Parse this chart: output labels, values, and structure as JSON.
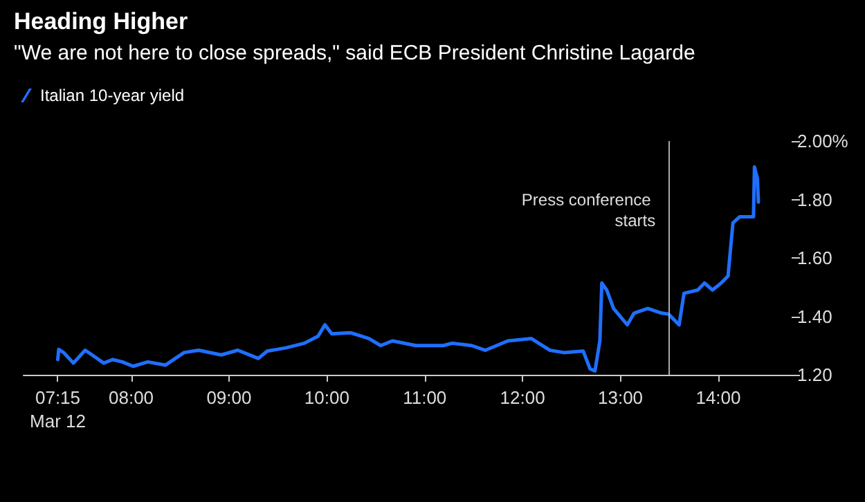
{
  "chart_data": {
    "type": "line",
    "title": "Heading Higher",
    "subtitle": "\"We are not here to close spreads,\" said ECB President Christine Lagarde",
    "x": [
      7.25,
      7.26,
      7.31,
      7.41,
      7.53,
      7.6,
      7.72,
      7.81,
      7.91,
      8.02,
      8.17,
      8.35,
      8.54,
      8.69,
      8.92,
      9.09,
      9.3,
      9.39,
      9.58,
      9.77,
      9.91,
      9.98,
      10.05,
      10.24,
      10.43,
      10.55,
      10.67,
      10.91,
      11.19,
      11.28,
      11.48,
      11.62,
      11.85,
      12.09,
      12.28,
      12.42,
      12.62,
      12.69,
      12.74,
      12.79,
      12.81,
      12.86,
      12.93,
      13.07,
      13.14,
      13.28,
      13.42,
      13.49,
      13.6,
      13.65,
      13.79,
      13.86,
      13.94,
      14.03,
      14.1,
      14.15,
      14.22,
      14.36,
      14.37,
      14.4,
      14.41
    ],
    "series": [
      {
        "name": "Italian 10-year yield",
        "color": "#1f6fff",
        "values": [
          1.252,
          1.287,
          1.276,
          1.24,
          1.284,
          1.268,
          1.24,
          1.252,
          1.244,
          1.229,
          1.244,
          1.233,
          1.276,
          1.284,
          1.268,
          1.284,
          1.256,
          1.281,
          1.292,
          1.308,
          1.332,
          1.371,
          1.34,
          1.344,
          1.324,
          1.3,
          1.316,
          1.3,
          1.3,
          1.308,
          1.3,
          1.284,
          1.316,
          1.324,
          1.284,
          1.276,
          1.281,
          1.22,
          1.213,
          1.316,
          1.514,
          1.49,
          1.427,
          1.371,
          1.411,
          1.427,
          1.411,
          1.408,
          1.371,
          1.479,
          1.49,
          1.514,
          1.49,
          1.514,
          1.538,
          1.72,
          1.741,
          1.741,
          1.911,
          1.871,
          1.791
        ]
      }
    ],
    "xlim": [
      6.9,
      14.75
    ],
    "xticks": [
      {
        "value": 7.25,
        "label": "07:15\nMar 12"
      },
      {
        "value": 8,
        "label": "08:00"
      },
      {
        "value": 9,
        "label": "09:00"
      },
      {
        "value": 10,
        "label": "10:00"
      },
      {
        "value": 11,
        "label": "11:00"
      },
      {
        "value": 12,
        "label": "12:00"
      },
      {
        "value": 13,
        "label": "13:00"
      },
      {
        "value": 14,
        "label": "14:00"
      }
    ],
    "ylim": [
      1.2,
      2.0
    ],
    "yticks": [
      {
        "value": 1.2,
        "label": "1.20"
      },
      {
        "value": 1.4,
        "label": "1.40"
      },
      {
        "value": 1.6,
        "label": "1.60"
      },
      {
        "value": 1.8,
        "label": "1.80"
      },
      {
        "value": 2.0,
        "label": "2.00%"
      }
    ],
    "ref_lines": [
      {
        "axis": "x",
        "value": 13.5,
        "label": "Press conference starts",
        "color": "#aaaaaa"
      }
    ],
    "grid": false,
    "legend": "top left",
    "marker": "none",
    "line_style": "solid"
  }
}
